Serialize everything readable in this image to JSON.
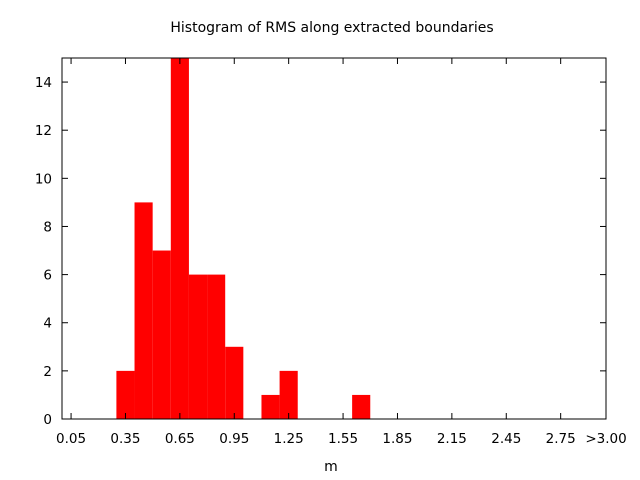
{
  "chart_data": {
    "type": "bar",
    "title": "Histogram of RMS along extracted boundaries",
    "xlabel": "m",
    "ylabel": "",
    "bar_color": "#ff0000",
    "bin_width": 0.1,
    "xlim": [
      0.0,
      3.0
    ],
    "ylim": [
      0,
      15
    ],
    "x_tick_labels": [
      "0.05",
      "0.35",
      "0.65",
      "0.95",
      "1.25",
      "1.55",
      "1.85",
      "2.15",
      "2.45",
      "2.75",
      ">3.00"
    ],
    "x_tick_values": [
      0.05,
      0.35,
      0.65,
      0.95,
      1.25,
      1.55,
      1.85,
      2.15,
      2.45,
      2.75,
      3.0
    ],
    "y_tick_labels": [
      "0",
      "2",
      "4",
      "6",
      "8",
      "10",
      "12",
      "14"
    ],
    "y_tick_values": [
      0,
      2,
      4,
      6,
      8,
      10,
      12,
      14
    ],
    "bins": [
      {
        "x": 0.35,
        "value": 2
      },
      {
        "x": 0.45,
        "value": 9
      },
      {
        "x": 0.55,
        "value": 7
      },
      {
        "x": 0.65,
        "value": 15
      },
      {
        "x": 0.75,
        "value": 6
      },
      {
        "x": 0.85,
        "value": 6
      },
      {
        "x": 0.95,
        "value": 3
      },
      {
        "x": 1.15,
        "value": 1
      },
      {
        "x": 1.25,
        "value": 2
      },
      {
        "x": 1.65,
        "value": 1
      }
    ],
    "grid": false
  }
}
